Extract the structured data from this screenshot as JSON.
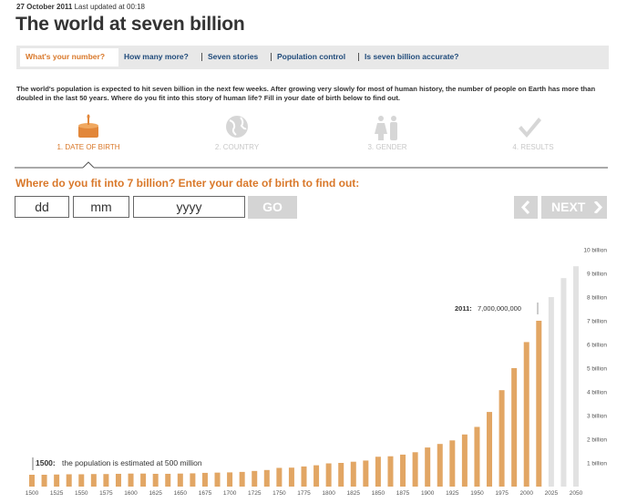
{
  "header": {
    "date": "27 October 2011",
    "updated": "Last updated at 00:18",
    "title": "The world at seven billion"
  },
  "nav": [
    "What's your number?",
    "How many more?",
    "Seven stories",
    "Population control",
    "Is seven billion accurate?"
  ],
  "intro": "The world's population is expected to hit seven billion in the next few weeks. After growing very slowly for most of human history, the number of people on Earth has more than doubled in the last 50 years. Where do you fit into this story of human life? Fill in your date of birth below to find out.",
  "steps": [
    "1. DATE OF BIRTH",
    "2. COUNTRY",
    "3. GENDER",
    "4. RESULTS"
  ],
  "form": {
    "question": "Where do you fit into 7 billion? Enter your date of birth to find out:",
    "day": "dd",
    "month": "mm",
    "year": "yyyy",
    "go": "GO",
    "next": "NEXT"
  },
  "chart_data": {
    "type": "bar",
    "x": [
      1500,
      1512.5,
      1525,
      1537.5,
      1550,
      1562.5,
      1575,
      1587.5,
      1600,
      1612.5,
      1625,
      1637.5,
      1650,
      1662.5,
      1675,
      1687.5,
      1700,
      1712.5,
      1725,
      1737.5,
      1750,
      1762.5,
      1775,
      1787.5,
      1800,
      1812.5,
      1825,
      1837.5,
      1850,
      1862.5,
      1875,
      1887.5,
      1900,
      1912.5,
      1925,
      1937.5,
      1950,
      1962.5,
      1975,
      1987.5,
      2000,
      2012.5,
      2025,
      2037.5,
      2050
    ],
    "values": [
      0.5,
      0.5,
      0.51,
      0.52,
      0.52,
      0.53,
      0.53,
      0.54,
      0.55,
      0.55,
      0.54,
      0.54,
      0.55,
      0.56,
      0.58,
      0.59,
      0.6,
      0.62,
      0.66,
      0.7,
      0.79,
      0.8,
      0.85,
      0.9,
      0.98,
      1.0,
      1.05,
      1.1,
      1.26,
      1.28,
      1.35,
      1.45,
      1.65,
      1.8,
      1.95,
      2.2,
      2.52,
      3.15,
      4.07,
      5.0,
      6.1,
      7.0,
      8.0,
      8.8,
      9.3
    ],
    "color": "#e2a664",
    "projection_color": "#e2e2e2",
    "projection_start": 2025,
    "xlim": [
      1500,
      2050
    ],
    "xticks": [
      1500,
      1525,
      1550,
      1575,
      1600,
      1625,
      1650,
      1675,
      1700,
      1725,
      1750,
      1775,
      1800,
      1825,
      1850,
      1875,
      1900,
      1925,
      1950,
      1975,
      2000,
      2025,
      2050
    ],
    "ylim": [
      0,
      10
    ],
    "yticks": [
      {
        "value": 1,
        "label": "1 billion"
      },
      {
        "value": 2,
        "label": "2 billion"
      },
      {
        "value": 3,
        "label": "3 billion"
      },
      {
        "value": 4,
        "label": "4 billion"
      },
      {
        "value": 5,
        "label": "5 billion"
      },
      {
        "value": 6,
        "label": "6 billion"
      },
      {
        "value": 7,
        "label": "7 billion"
      },
      {
        "value": 8,
        "label": "8 billion"
      },
      {
        "value": 9,
        "label": "9 billion"
      },
      {
        "value": 10,
        "label": "10 billion"
      }
    ],
    "annotations": [
      {
        "label": "2011:",
        "text": "7,000,000,000"
      },
      {
        "label": "1500:",
        "text": "the population is estimated at 500 million"
      }
    ]
  }
}
